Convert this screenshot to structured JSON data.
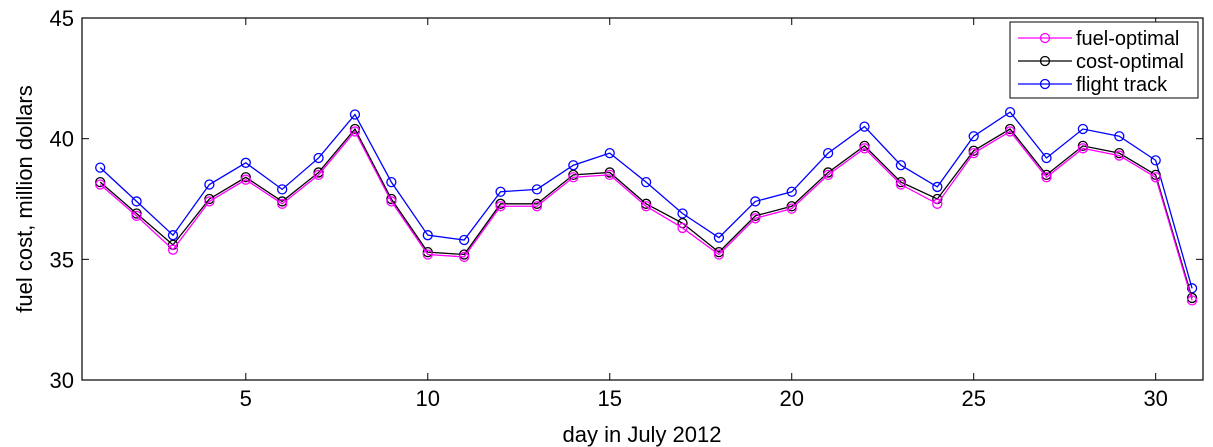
{
  "chart_data": {
    "type": "line",
    "title": "",
    "xlabel": "day in July 2012",
    "ylabel": "fuel cost, million dollars",
    "xlim": [
      0.5,
      31.3
    ],
    "ylim": [
      30,
      45
    ],
    "xticks": [
      5,
      10,
      15,
      20,
      25,
      30
    ],
    "yticks": [
      30,
      35,
      40,
      45
    ],
    "grid": false,
    "legend_position": "top-right",
    "x": [
      1,
      2,
      3,
      4,
      5,
      6,
      7,
      8,
      9,
      10,
      11,
      12,
      13,
      14,
      15,
      16,
      17,
      18,
      19,
      20,
      21,
      22,
      23,
      24,
      25,
      26,
      27,
      28,
      29,
      30,
      31
    ],
    "series": [
      {
        "name": "fuel-optimal",
        "color": "#ff00ff",
        "marker": "circle",
        "values": [
          38.1,
          36.8,
          35.4,
          37.4,
          38.3,
          37.3,
          38.5,
          40.3,
          37.4,
          35.2,
          35.1,
          37.2,
          37.2,
          38.4,
          38.5,
          37.2,
          36.3,
          35.2,
          36.7,
          37.1,
          38.5,
          39.6,
          38.1,
          37.3,
          39.4,
          40.3,
          38.4,
          39.6,
          39.3,
          38.4,
          33.3
        ]
      },
      {
        "name": "cost-optimal",
        "color": "#000000",
        "marker": "circle",
        "values": [
          38.2,
          36.9,
          35.6,
          37.5,
          38.4,
          37.4,
          38.6,
          40.4,
          37.5,
          35.3,
          35.2,
          37.3,
          37.3,
          38.5,
          38.6,
          37.3,
          36.5,
          35.3,
          36.8,
          37.2,
          38.6,
          39.7,
          38.2,
          37.5,
          39.5,
          40.4,
          38.5,
          39.7,
          39.4,
          38.5,
          33.4
        ]
      },
      {
        "name": "flight track",
        "color": "#0000ff",
        "marker": "circle",
        "values": [
          38.8,
          37.4,
          36.0,
          38.1,
          39.0,
          37.9,
          39.2,
          41.0,
          38.2,
          36.0,
          35.8,
          37.8,
          37.9,
          38.9,
          39.4,
          38.2,
          36.9,
          35.9,
          37.4,
          37.8,
          39.4,
          40.5,
          38.9,
          38.0,
          40.1,
          41.1,
          39.2,
          40.4,
          40.1,
          39.1,
          33.8
        ]
      }
    ]
  }
}
